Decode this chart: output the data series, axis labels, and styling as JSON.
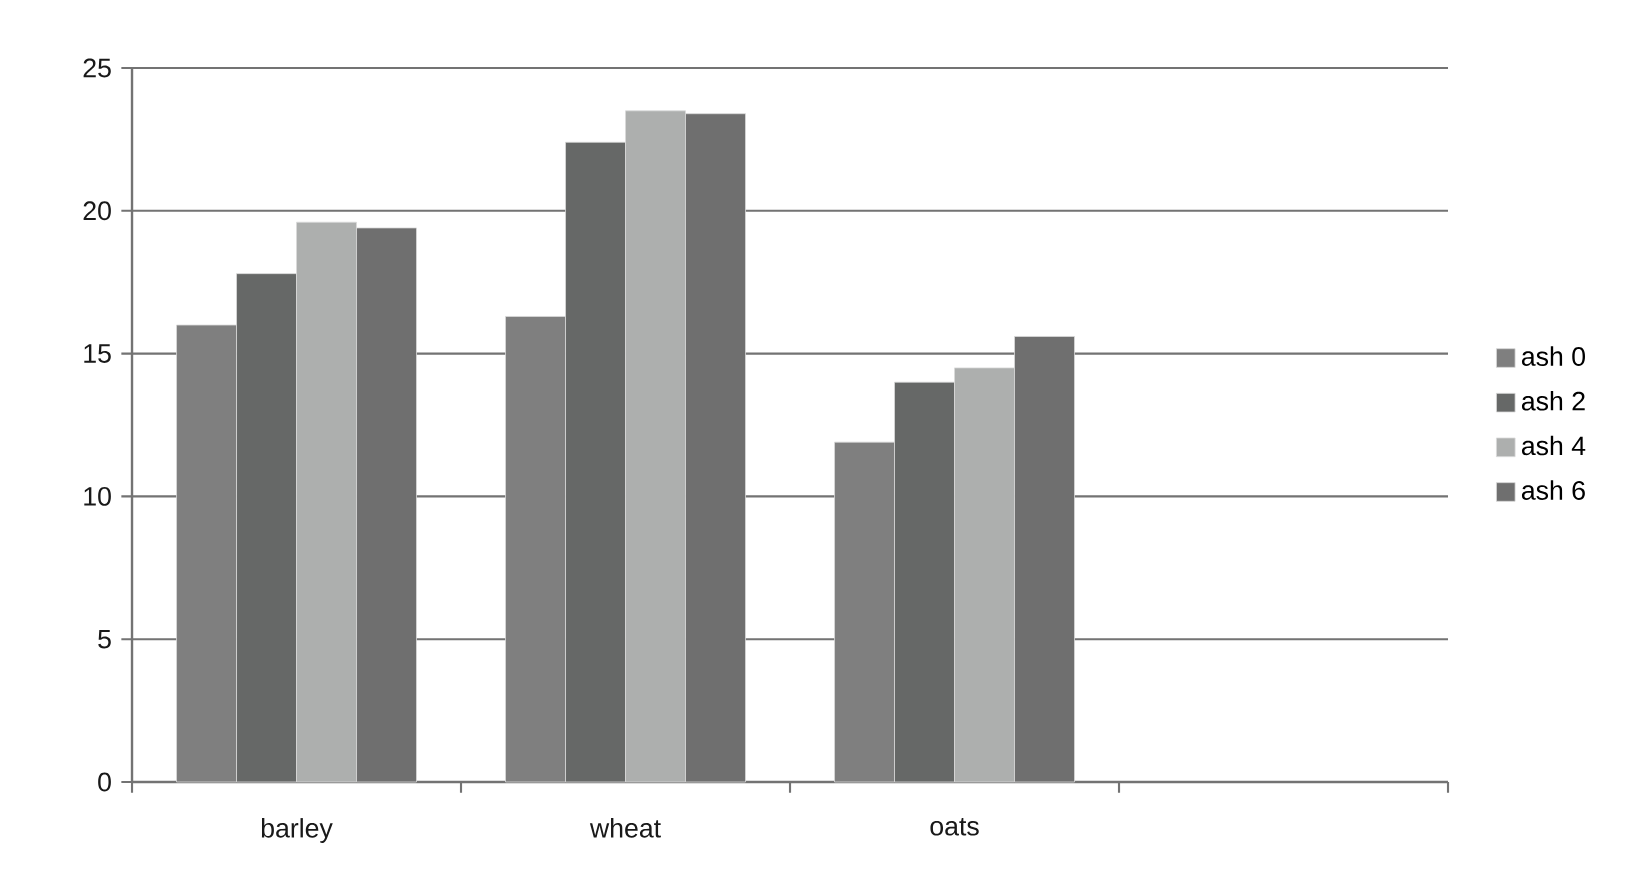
{
  "chart_data": {
    "type": "bar",
    "categories": [
      "barley",
      "wheat",
      "oats",
      null
    ],
    "series": [
      {
        "name": "ash 0",
        "color": "#7f7f7f",
        "values": [
          16.0,
          16.3,
          11.9,
          null
        ]
      },
      {
        "name": "ash 2",
        "color": "#666867",
        "values": [
          17.8,
          22.4,
          14.0,
          null
        ]
      },
      {
        "name": "ash 4",
        "color": "#adafae",
        "values": [
          19.6,
          23.5,
          14.5,
          null
        ]
      },
      {
        "name": "ash 6",
        "color": "#6f6f6f",
        "values": [
          19.4,
          23.4,
          15.6,
          null
        ]
      }
    ],
    "ylim": [
      0,
      25
    ],
    "yticks": [
      0,
      5,
      10,
      15,
      20,
      25
    ],
    "grid": "y",
    "legend": "right"
  }
}
